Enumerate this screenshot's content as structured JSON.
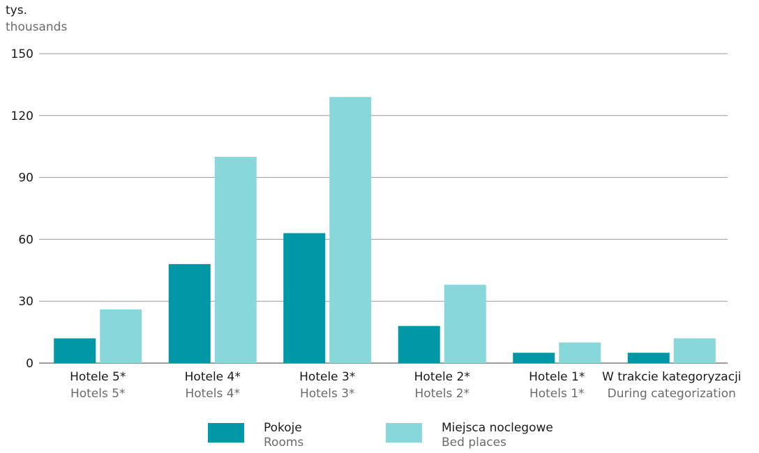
{
  "chart_data": {
    "type": "bar",
    "ylabel": "tys.",
    "ylabel_en": "thousands",
    "ylim": [
      0,
      150
    ],
    "yticks": [
      0,
      30,
      60,
      90,
      120,
      150
    ],
    "grid": true,
    "legend_position": "bottom",
    "categories": [
      "Hotele 5*",
      "Hotele 4*",
      "Hotele 3*",
      "Hotele 2*",
      "Hotele 1*",
      "W trakcie kategoryzacji"
    ],
    "categories_en": [
      "Hotels 5*",
      "Hotels 4*",
      "Hotels 3*",
      "Hotels 2*",
      "Hotels 1*",
      "During categorization"
    ],
    "series": [
      {
        "name": "Pokoje",
        "name_en": "Rooms",
        "color": "#0097a7",
        "values": [
          12,
          48,
          63,
          18,
          5,
          5
        ]
      },
      {
        "name": "Miejsca noclegowe",
        "name_en": "Bed places",
        "color": "#87d7db",
        "values": [
          26,
          100,
          129,
          38,
          10,
          12
        ]
      }
    ]
  }
}
